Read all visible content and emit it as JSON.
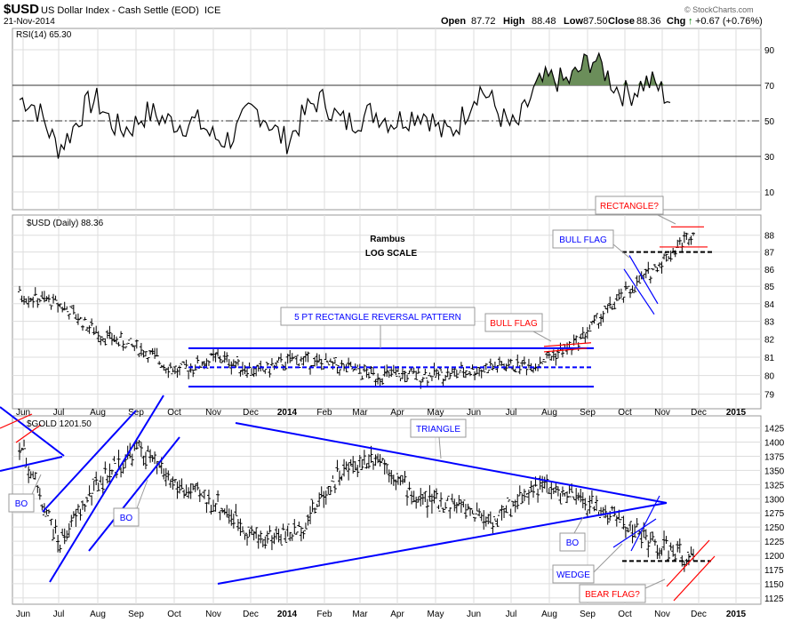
{
  "header": {
    "symbol": "$USD",
    "name": "US Dollar Index - Cash Settle (EOD)",
    "exchange": "ICE",
    "date": "21-Nov-2014",
    "open_label": "Open",
    "open": "87.72",
    "high_label": "High",
    "high": "88.48",
    "low_label": "Low",
    "low": "87.50",
    "close_label": "Close",
    "close": "88.36",
    "chg_label": "Chg",
    "chg": "+0.67 (+0.76%)",
    "chg_icon": "up-arrow-icon",
    "watermark": "© StockCharts.com"
  },
  "x_axis_labels": [
    "Jun",
    "Jul",
    "Aug",
    "Sep",
    "Oct",
    "Nov",
    "Dec",
    "2014",
    "Feb",
    "Mar",
    "Apr",
    "May",
    "Jun",
    "Jul",
    "Aug",
    "Sep",
    "Oct",
    "Nov",
    "Dec",
    "2015"
  ],
  "colors": {
    "price": "#000000",
    "blue": "#0000ff",
    "red": "#ff0000",
    "rsi_fill": "#6b8e5a",
    "grid": "#dddddd",
    "axis": "#888888"
  },
  "chart_data": [
    {
      "type": "line",
      "panel": "rsi",
      "title": "RSI(14) 65.30",
      "ylim": [
        0,
        100
      ],
      "y_ticks": [
        10,
        30,
        50,
        70,
        90
      ],
      "reference_lines": [
        30,
        50,
        70
      ],
      "overbought_fill_above": 70,
      "x": [
        "Jun 2013",
        "Jul",
        "Aug",
        "Sep",
        "Oct",
        "Nov",
        "Dec",
        "Jan 2014",
        "Feb",
        "Mar",
        "Apr",
        "May",
        "Jun",
        "Jul",
        "Aug",
        "Sep",
        "Oct",
        "Nov"
      ],
      "values": [
        62,
        40,
        58,
        46,
        55,
        39,
        52,
        44,
        60,
        48,
        56,
        44,
        63,
        50,
        76,
        80,
        68,
        65
      ]
    },
    {
      "type": "ohlc",
      "panel": "usd",
      "title": "$USD (Daily) 88.36",
      "scale": "log",
      "ylim": [
        78.5,
        89
      ],
      "y_ticks": [
        79,
        80,
        81,
        82,
        83,
        84,
        85,
        86,
        87,
        88
      ],
      "x": [
        "Jun 2013",
        "Jul",
        "Aug",
        "Sep",
        "Oct",
        "Nov",
        "Dec",
        "Jan 2014",
        "Feb",
        "Mar",
        "Apr",
        "May",
        "Jun",
        "Jul",
        "Aug",
        "Sep",
        "Oct",
        "Nov"
      ],
      "values": [
        84.5,
        84.0,
        82.3,
        81.5,
        80.2,
        81.0,
        80.2,
        80.9,
        80.5,
        80.0,
        80.0,
        80.1,
        80.5,
        80.6,
        81.7,
        84.0,
        86.0,
        88.2
      ],
      "annotations": [
        "Rambus",
        "LOG SCALE",
        "5 PT RECTANGLE REVERSAL PATTERN",
        "BULL FLAG",
        "BULL FLAG",
        "RECTANGLE?"
      ],
      "horizontal_levels": [
        81.5,
        80.45,
        79.4,
        87.0,
        88.5,
        87.3
      ]
    },
    {
      "type": "ohlc",
      "panel": "gold",
      "title": "$GOLD 1201.50",
      "ylim": [
        1120,
        1440
      ],
      "y_ticks": [
        1125,
        1150,
        1175,
        1200,
        1225,
        1250,
        1275,
        1300,
        1325,
        1350,
        1375,
        1400,
        1425
      ],
      "x": [
        "Jun 2013",
        "Jul",
        "Aug",
        "Sep",
        "Oct",
        "Nov",
        "Dec",
        "Jan 2014",
        "Feb",
        "Mar",
        "Apr",
        "May",
        "Jun",
        "Jul",
        "Aug",
        "Sep",
        "Oct",
        "Nov"
      ],
      "values": [
        1400,
        1220,
        1330,
        1390,
        1320,
        1290,
        1230,
        1240,
        1340,
        1380,
        1300,
        1290,
        1260,
        1325,
        1300,
        1270,
        1220,
        1190
      ],
      "annotations": [
        "BO",
        "BO",
        "TRIANGLE",
        "BO",
        "WEDGE",
        "BEAR FLAG?"
      ]
    }
  ]
}
